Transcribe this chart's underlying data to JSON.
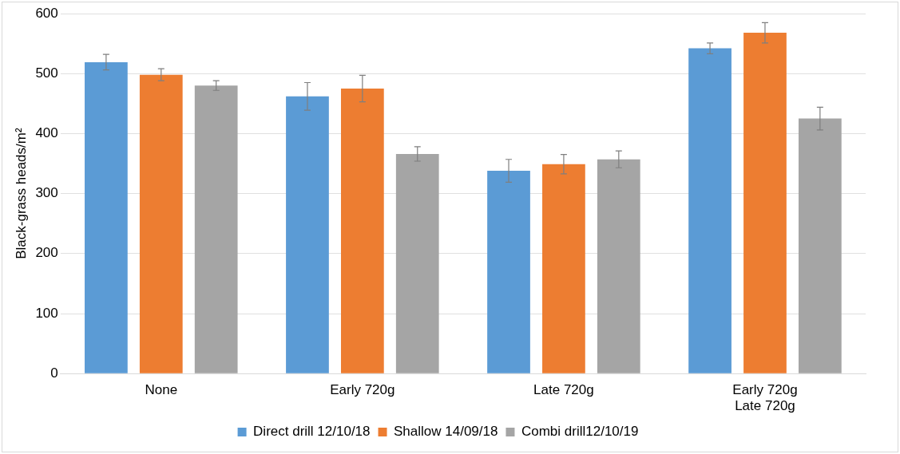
{
  "chart_data": {
    "type": "bar",
    "ylabel": "Black-grass heads/m²",
    "categories": [
      "None",
      "Early 720g",
      "Late 720g",
      "Early 720g\nLate 720g"
    ],
    "series": [
      {
        "name": "Direct drill 12/10/18",
        "color": "#5b9bd5",
        "values": [
          519,
          462,
          338,
          542
        ],
        "errors": [
          13,
          23,
          19,
          9
        ]
      },
      {
        "name": "Shallow 14/09/18",
        "color": "#ed7d31",
        "values": [
          498,
          475,
          349,
          568
        ],
        "errors": [
          10,
          22,
          16,
          17
        ]
      },
      {
        "name": "Combi drill12/10/19",
        "color": "#a5a5a5",
        "values": [
          480,
          366,
          357,
          425
        ],
        "errors": [
          8,
          12,
          14,
          19
        ]
      }
    ],
    "ylim": [
      0,
      600
    ],
    "yticks": [
      0,
      100,
      200,
      300,
      400,
      500,
      600
    ],
    "grid": "y",
    "legend": "bottom"
  }
}
